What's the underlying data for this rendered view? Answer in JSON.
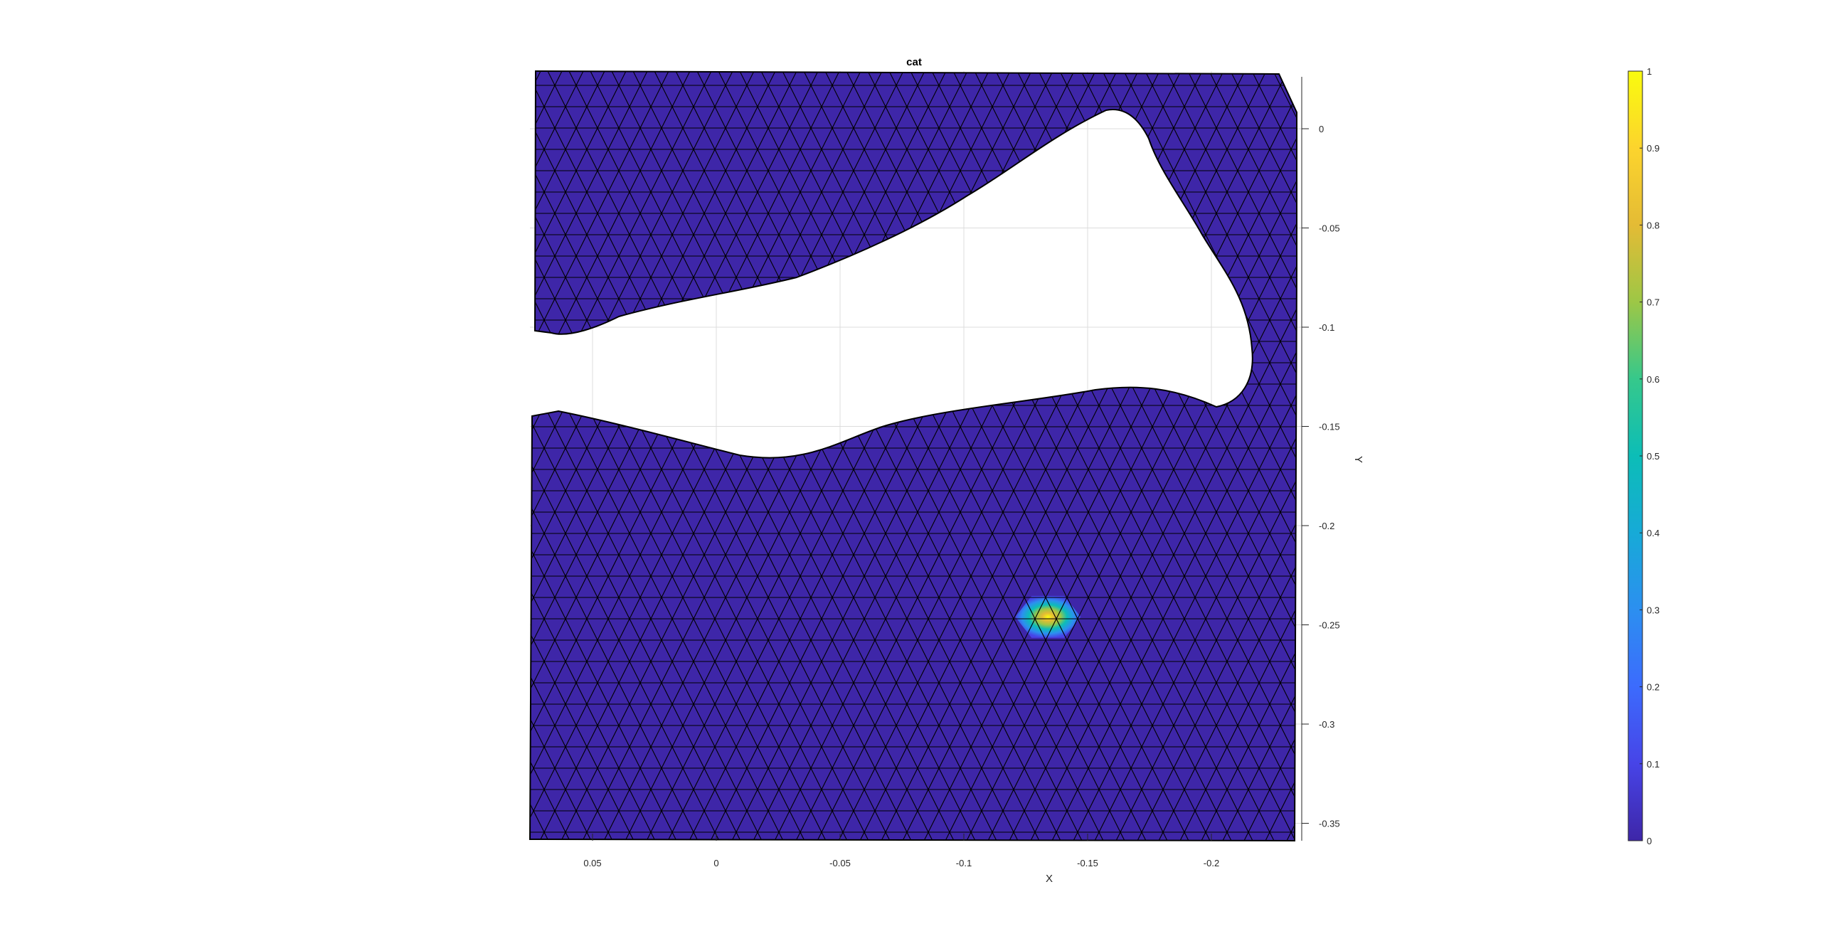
{
  "chart_data": {
    "type": "heatmap",
    "title": "cat",
    "xlabel": "X",
    "ylabel": "Y",
    "x_axis_reversed": true,
    "xlim": [
      0.075,
      -0.235
    ],
    "ylim": [
      -0.36,
      0.025
    ],
    "xticks": [
      0.05,
      0,
      -0.05,
      -0.1,
      -0.15,
      -0.2
    ],
    "xtick_labels": [
      "0.05",
      "0",
      "-0.05",
      "-0.1",
      "-0.15",
      "-0.2"
    ],
    "yticks": [
      0,
      -0.05,
      -0.1,
      -0.15,
      -0.2,
      -0.25,
      -0.3,
      -0.35
    ],
    "ytick_labels": [
      "0",
      "-0.05",
      "-0.1",
      "-0.15",
      "-0.2",
      "-0.25",
      "-0.3",
      "-0.35"
    ],
    "y_axis_location": "right",
    "grid": true,
    "colormap": "parula",
    "colorbar": {
      "location": "right",
      "limits": [
        0,
        1
      ],
      "ticks": [
        0,
        0.1,
        0.2,
        0.3,
        0.4,
        0.5,
        0.6,
        0.7,
        0.8,
        0.9,
        1
      ],
      "tick_labels": [
        "0",
        "0.1",
        "0.2",
        "0.3",
        "0.4",
        "0.5",
        "0.6",
        "0.7",
        "0.8",
        "0.9",
        "1"
      ]
    },
    "field": {
      "background_value": 0.05,
      "peak": {
        "x": -0.134,
        "y": -0.246,
        "value": 1.0
      }
    },
    "mesh": {
      "edge_color": "#000000",
      "cell_type": "triangle"
    },
    "colors": {
      "low": "#3e26a8",
      "high": "#f9fb0e"
    }
  }
}
